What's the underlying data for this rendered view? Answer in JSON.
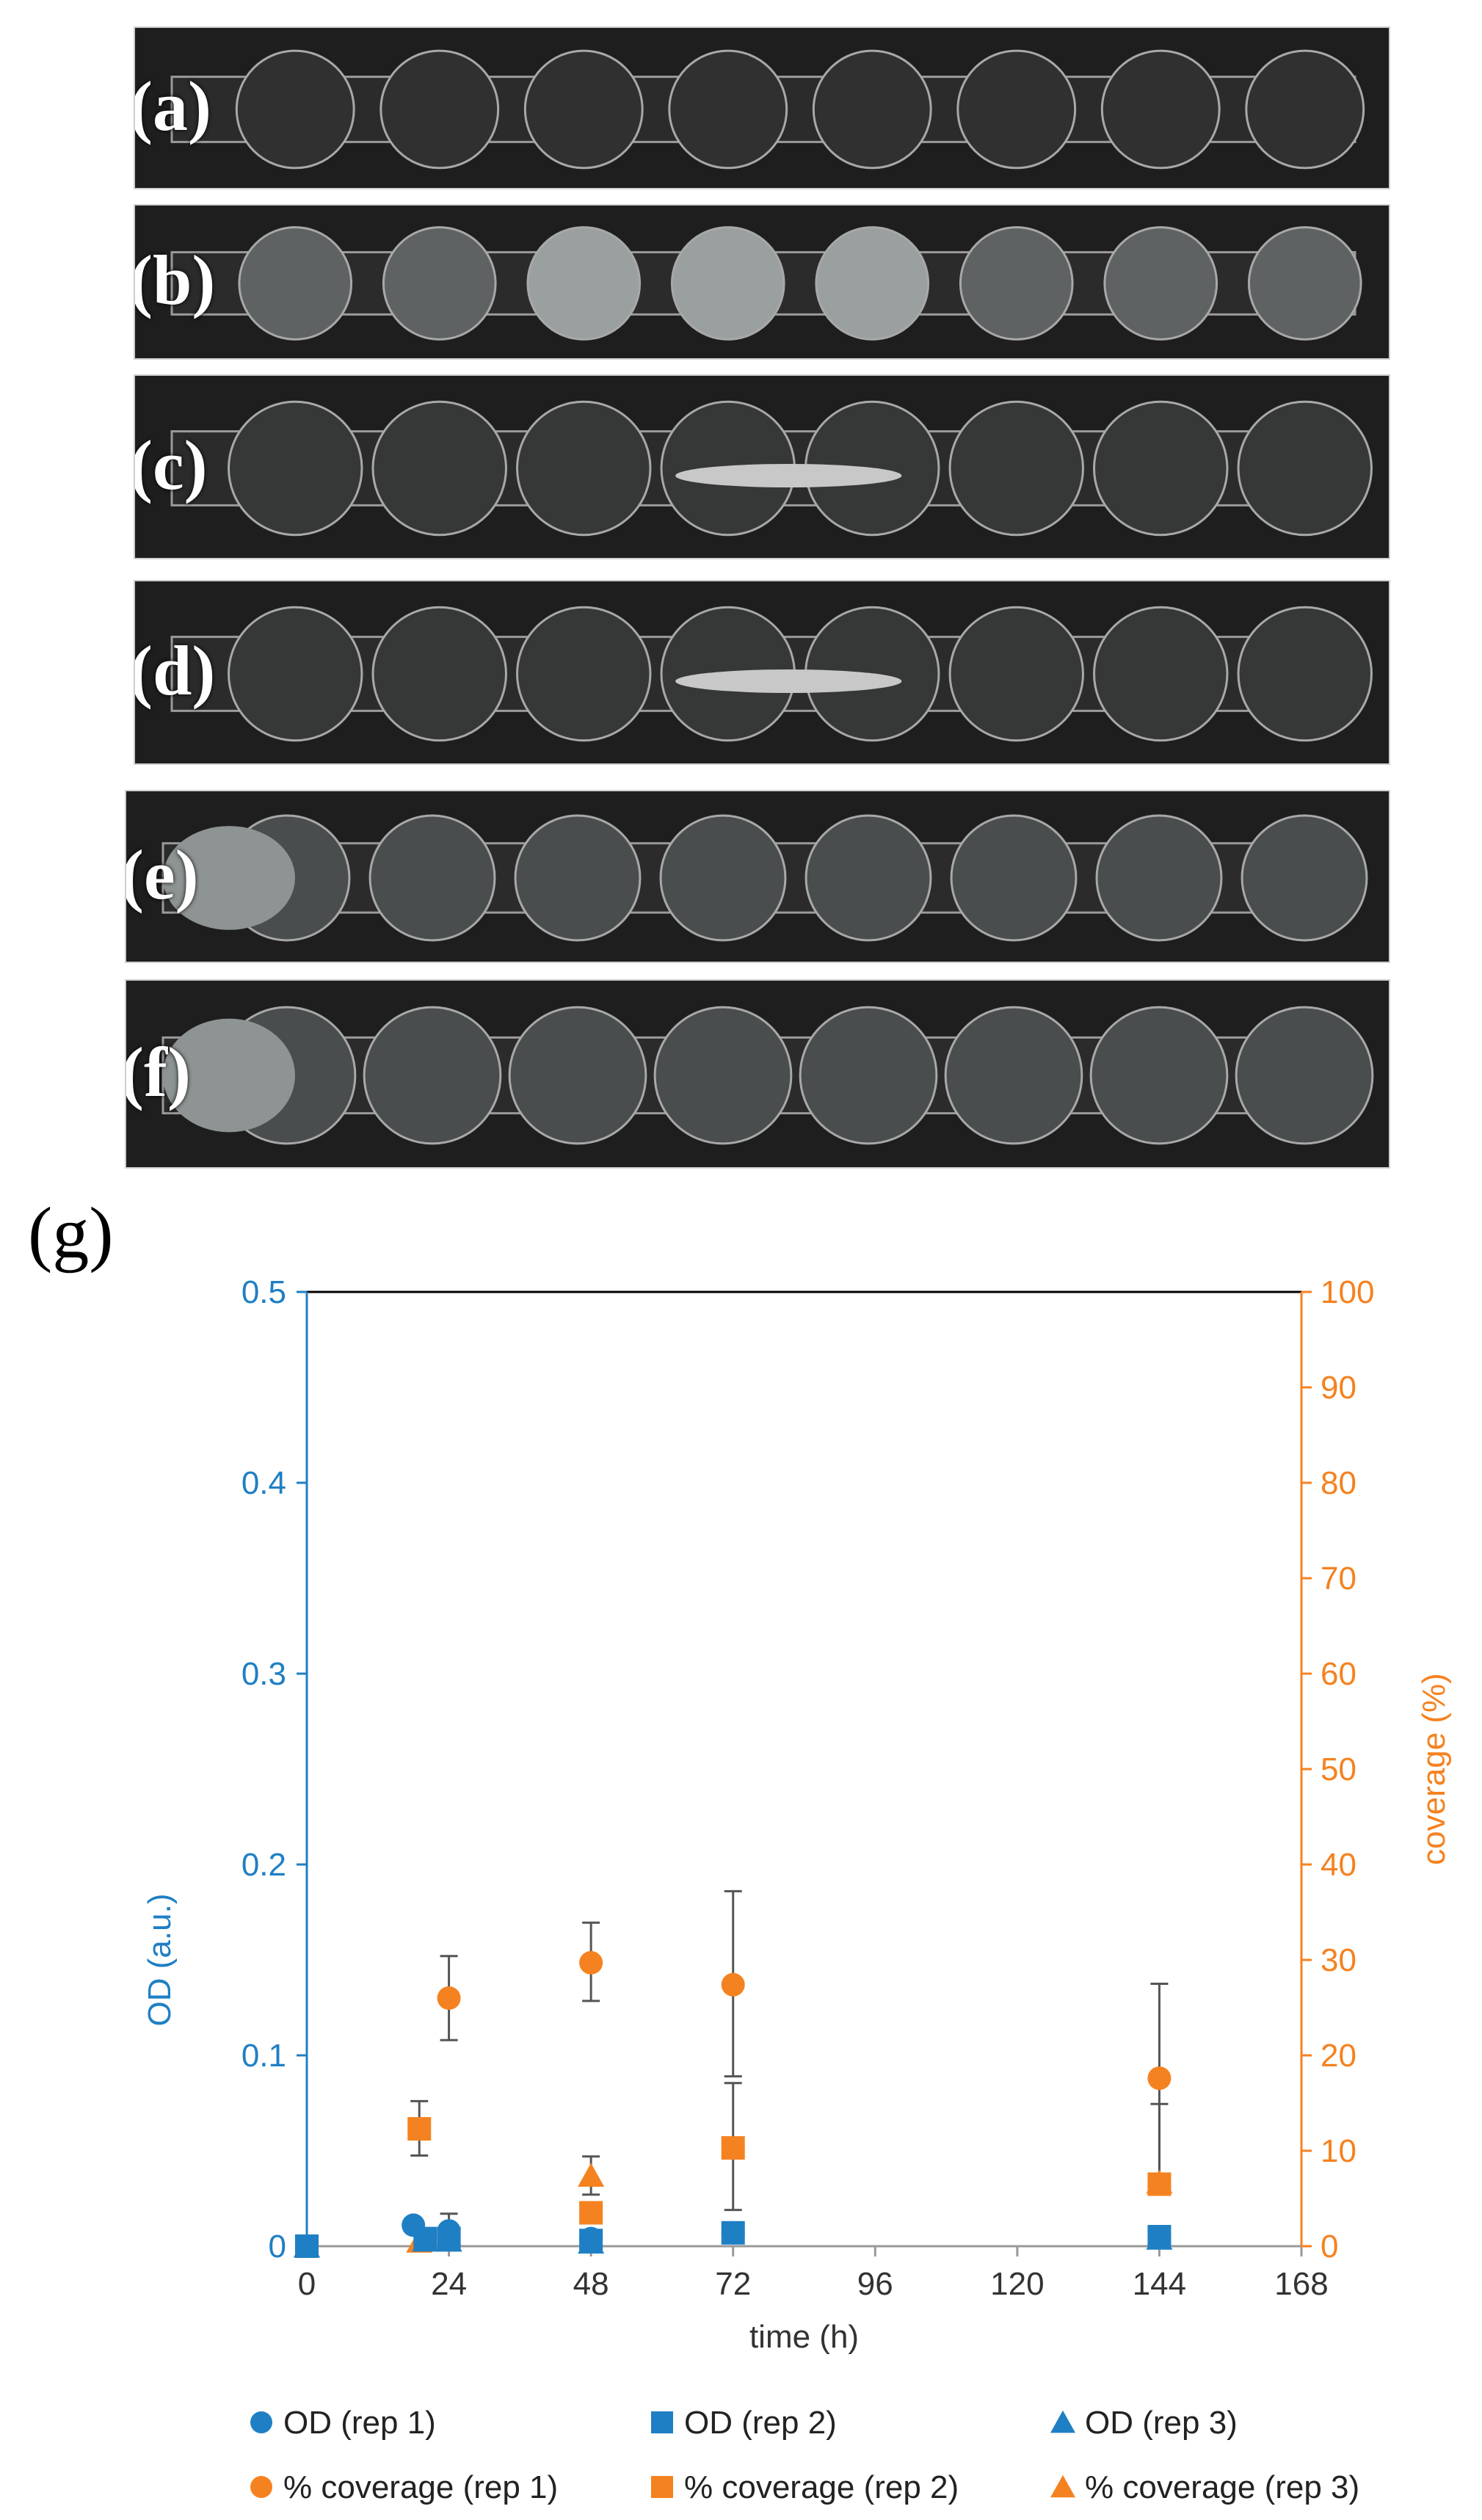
{
  "panels": [
    {
      "label": "(a)",
      "state": "clean"
    },
    {
      "label": "(b)",
      "state": "cloudy"
    },
    {
      "label": "(c)",
      "state": "streak"
    },
    {
      "label": "(d)",
      "state": "streak"
    },
    {
      "label": "(e)",
      "state": "film"
    },
    {
      "label": "(f)",
      "state": "film"
    }
  ],
  "figure_label": "(g)",
  "colors": {
    "od": "#1f7fc4",
    "coverage": "#f58220",
    "error": "#555555"
  },
  "chart_data": {
    "type": "scatter",
    "xlabel": "time (h)",
    "ylabel_left": "OD (a.u.)",
    "ylabel_right": "coverage (%)",
    "xlim": [
      0,
      168
    ],
    "x_ticks": [
      "0",
      "24",
      "48",
      "72",
      "96",
      "120",
      "144",
      "168"
    ],
    "ylim_left": [
      0,
      0.5
    ],
    "y_left_ticks": [
      "0",
      "0.1",
      "0.2",
      "0.3",
      "0.4",
      "0.5"
    ],
    "ylim_right": [
      0,
      100
    ],
    "y_right_ticks": [
      "0",
      "10",
      "20",
      "30",
      "40",
      "50",
      "60",
      "70",
      "80",
      "90",
      "100"
    ],
    "grid": false,
    "legend_position": "bottom",
    "series": [
      {
        "name": "OD (rep 1)",
        "axis": "left",
        "marker": "circle",
        "color": "#1f7fc4",
        "x": [
          0,
          18,
          24,
          48,
          72,
          144
        ],
        "y": [
          0,
          0.011,
          0.008,
          0.004,
          0.007,
          0.005
        ]
      },
      {
        "name": "OD (rep 2)",
        "axis": "left",
        "marker": "square",
        "color": "#1f7fc4",
        "x": [
          0,
          20,
          24,
          48,
          72,
          144
        ],
        "y": [
          0,
          0.004,
          0.004,
          0.003,
          0.007,
          0.005
        ]
      },
      {
        "name": "OD (rep 3)",
        "axis": "left",
        "marker": "triangle",
        "color": "#1f7fc4",
        "x": [
          0,
          20,
          24,
          48,
          144
        ],
        "y": [
          0,
          0.003,
          0.003,
          0.002,
          0.004
        ]
      },
      {
        "name": "% coverage (rep 1)",
        "axis": "right",
        "marker": "circle",
        "color": "#f58220",
        "x": [
          0,
          24,
          48,
          72,
          144
        ],
        "y": [
          0,
          26,
          29.7,
          27.4,
          17.6
        ],
        "err_low": [
          0,
          4.4,
          4.0,
          9.6,
          10.2
        ],
        "err_high": [
          0,
          4.4,
          4.2,
          9.8,
          9.9
        ]
      },
      {
        "name": "% coverage (rep 2)",
        "axis": "right",
        "marker": "square",
        "color": "#f58220",
        "x": [
          0,
          19,
          24,
          48,
          72,
          144
        ],
        "y": [
          0,
          12.3,
          0.8,
          3.5,
          10.3,
          6.5
        ],
        "err_low": [
          0,
          2.8,
          0,
          0,
          6.5,
          0
        ],
        "err_high": [
          0,
          2.9,
          0,
          0,
          6.8,
          8.4
        ]
      },
      {
        "name": "% coverage (rep 3)",
        "axis": "right",
        "marker": "triangle",
        "color": "#f58220",
        "x": [
          0,
          19,
          24,
          48,
          144
        ],
        "y": [
          0,
          0.5,
          0.6,
          7.4,
          6.7
        ],
        "err_low": [
          0,
          0,
          0,
          2.0,
          0
        ],
        "err_high": [
          0,
          0,
          2.8,
          2.0,
          0
        ]
      }
    ]
  }
}
